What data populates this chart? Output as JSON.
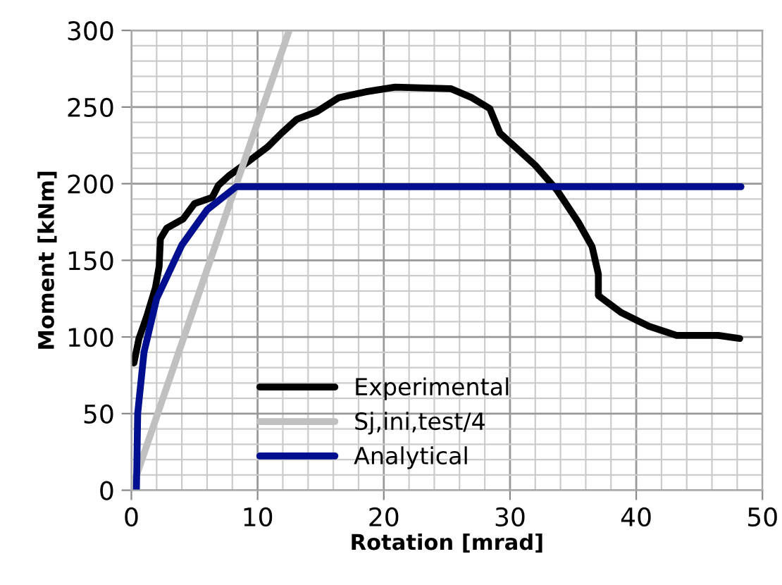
{
  "chart_data": {
    "type": "line",
    "xlabel": "Rotation [mrad]",
    "ylabel": "Moment [kNm]",
    "xlim": [
      0,
      50
    ],
    "ylim": [
      0,
      300
    ],
    "xticks": [
      0,
      10,
      20,
      30,
      40,
      50
    ],
    "yticks": [
      0,
      50,
      100,
      150,
      200,
      250,
      300
    ],
    "grid": true,
    "legend": "bottom left",
    "marker": "none",
    "line_style": "solid",
    "series": [
      {
        "name": "Experimental",
        "color": "#000000",
        "x": [
          0.2,
          0.6,
          1.2,
          1.9,
          2.2,
          2.3,
          2.8,
          4.1,
          5.0,
          6.4,
          6.9,
          7.7,
          9.2,
          10.8,
          11.9,
          13.1,
          14.7,
          16.4,
          18.6,
          20.9,
          25.3,
          27,
          28.4,
          29.2,
          30,
          32,
          33.7,
          35.4,
          36.5,
          37,
          37,
          38.8,
          41,
          43.2,
          46.5,
          48.2
        ],
        "values": [
          83,
          99,
          113,
          132,
          146,
          164,
          171,
          177,
          187,
          191,
          199,
          205,
          214,
          224,
          233,
          242,
          247,
          256,
          260,
          263,
          262,
          256,
          249,
          233,
          227,
          212,
          196,
          175,
          159,
          141,
          127,
          116,
          107,
          101,
          101,
          99
        ]
      },
      {
        "name": "Sj,ini,test/4",
        "color": "#c0c0c0",
        "x": [
          0,
          12.5
        ],
        "values": [
          0,
          300
        ]
      },
      {
        "name": "Analytical",
        "color": "#000f8f",
        "x": [
          0.4,
          0.5,
          1,
          2,
          4,
          6,
          8.3,
          48.3
        ],
        "values": [
          0,
          50,
          90,
          125,
          160,
          183,
          198,
          198
        ]
      }
    ]
  }
}
